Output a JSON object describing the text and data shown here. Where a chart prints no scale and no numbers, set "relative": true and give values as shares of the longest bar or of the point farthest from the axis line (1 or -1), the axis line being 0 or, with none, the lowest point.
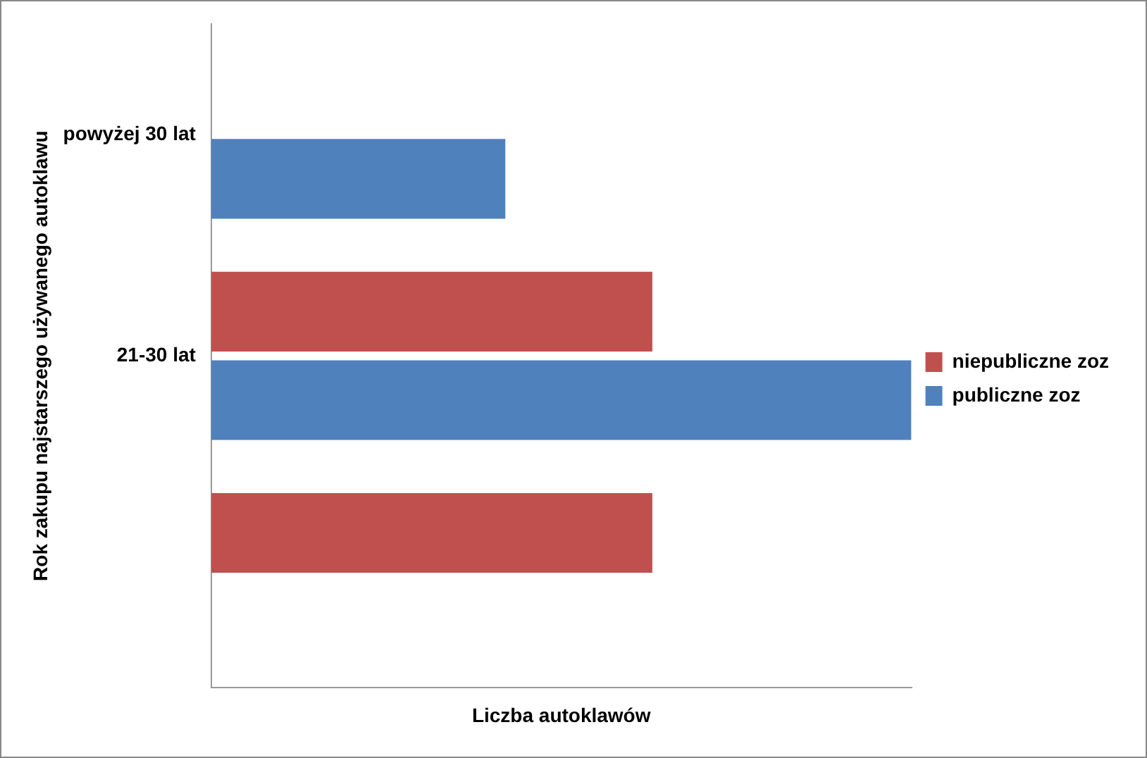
{
  "chart_data": {
    "type": "bar",
    "orientation": "horizontal",
    "relative": true,
    "categories": [
      "powyżej 30 lat",
      "21-30 lat",
      null
    ],
    "xlabel": "Liczba autoklawów",
    "ylabel": "Rok zakupu najstarszego używanego autoklawu",
    "series": [
      {
        "name": "niepubliczne zoz",
        "color": "#c0504d",
        "values": [
          null,
          0.63,
          0.63
        ]
      },
      {
        "name": "publiczne zoz",
        "color": "#4f81bd",
        "values": [
          0.42,
          1,
          null
        ]
      }
    ],
    "legend": "right"
  }
}
